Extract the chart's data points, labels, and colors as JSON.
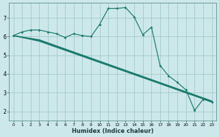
{
  "xlabel": "Humidex (Indice chaleur)",
  "bg_color": "#cde8ea",
  "grid_color": "#a0c8c8",
  "line_color": "#1a7a6e",
  "xlim": [
    -0.5,
    23.5
  ],
  "ylim": [
    1.5,
    7.8
  ],
  "yticks": [
    2,
    3,
    4,
    5,
    6,
    7
  ],
  "xticks": [
    0,
    1,
    2,
    3,
    4,
    5,
    6,
    7,
    8,
    9,
    10,
    11,
    12,
    13,
    14,
    15,
    16,
    17,
    18,
    19,
    20,
    21,
    22,
    23
  ],
  "main_series": {
    "x": [
      0,
      1,
      2,
      3,
      4,
      5,
      6,
      7,
      8,
      9,
      10,
      11,
      12,
      13,
      14,
      15,
      16,
      17,
      18,
      19,
      20,
      21,
      22,
      23
    ],
    "y": [
      6.05,
      6.25,
      6.35,
      6.35,
      6.25,
      6.15,
      5.95,
      6.15,
      6.05,
      6.0,
      6.65,
      7.5,
      7.5,
      7.55,
      7.05,
      6.1,
      6.5,
      4.45,
      3.9,
      3.55,
      3.15,
      2.05,
      2.65,
      2.5
    ]
  },
  "diag_lines": [
    {
      "x": [
        0,
        3,
        23
      ],
      "y": [
        6.05,
        5.75,
        2.5
      ]
    },
    {
      "x": [
        0,
        3,
        23
      ],
      "y": [
        6.05,
        5.78,
        2.52
      ]
    },
    {
      "x": [
        0,
        3,
        23
      ],
      "y": [
        6.05,
        5.8,
        2.54
      ]
    },
    {
      "x": [
        0,
        3,
        23
      ],
      "y": [
        6.05,
        5.83,
        2.56
      ]
    }
  ],
  "tick_fontsize": 5.5,
  "xlabel_fontsize": 6.0,
  "marker_size": 2.0,
  "linewidth": 0.9
}
